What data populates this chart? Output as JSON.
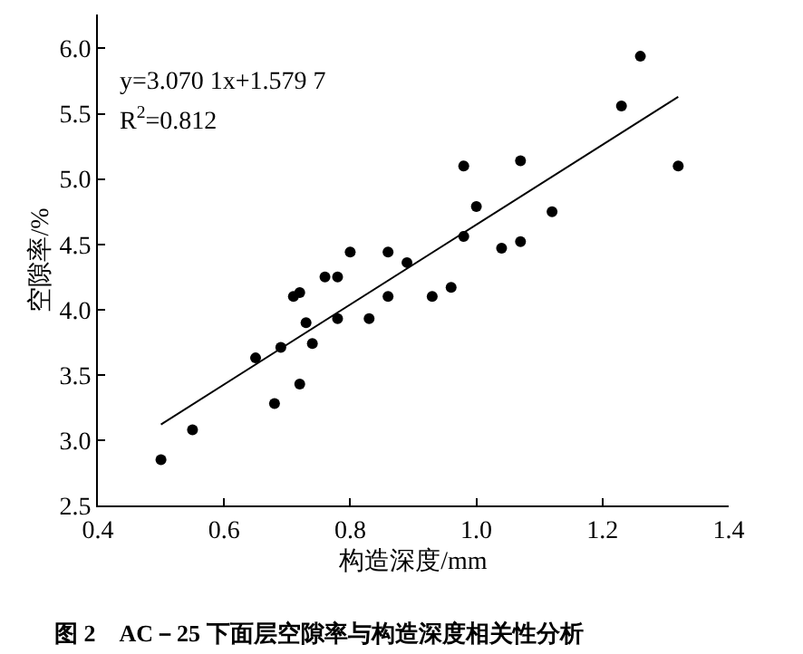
{
  "chart_data": {
    "type": "scatter",
    "title": "图 2　AC－25 下面层空隙率与构造深度相关性分析",
    "xlabel": "构造深度/mm",
    "ylabel": "空隙率/%",
    "xlim": [
      0.4,
      1.4
    ],
    "xticks": [
      {
        "value": 0.4,
        "label": "0.4"
      },
      {
        "value": 0.6,
        "label": "0.6"
      },
      {
        "value": 0.8,
        "label": "0.8"
      },
      {
        "value": 1.0,
        "label": "1.0"
      },
      {
        "value": 1.2,
        "label": "1.2"
      },
      {
        "value": 1.4,
        "label": "1.4"
      }
    ],
    "ylim": [
      2.5,
      6.26
    ],
    "yticks": [
      {
        "value": 2.5,
        "label": "2.5"
      },
      {
        "value": 3.0,
        "label": "3.0"
      },
      {
        "value": 3.5,
        "label": "3.5"
      },
      {
        "value": 4.0,
        "label": "4.0"
      },
      {
        "value": 4.5,
        "label": "4.5"
      },
      {
        "value": 5.0,
        "label": "5.0"
      },
      {
        "value": 5.5,
        "label": "5.5"
      },
      {
        "value": 6.0,
        "label": "6.0"
      }
    ],
    "legend": false,
    "marker": "circle",
    "annotations": [
      "y=3.070 1x+1.579 7",
      "R$^{2}$=0.812"
    ],
    "series": [
      {
        "color": "#000000",
        "x": [
          0.5,
          0.55,
          0.65,
          0.68,
          0.69,
          0.71,
          0.72,
          0.72,
          0.73,
          0.74,
          0.76,
          0.78,
          0.78,
          0.8,
          0.83,
          0.86,
          0.86,
          0.89,
          0.93,
          0.96,
          0.98,
          0.98,
          1.0,
          1.04,
          1.07,
          1.07,
          1.12,
          1.23,
          1.26,
          1.32
        ],
        "values": [
          2.85,
          3.08,
          3.63,
          3.28,
          3.71,
          4.1,
          4.13,
          3.43,
          3.9,
          3.74,
          4.25,
          4.25,
          3.93,
          4.44,
          3.93,
          4.44,
          4.1,
          4.36,
          4.1,
          4.17,
          4.56,
          5.1,
          4.79,
          4.47,
          5.14,
          4.52,
          4.75,
          5.56,
          5.94,
          5.1
        ]
      },
      {
        "type": "line",
        "marker": "none",
        "color": "#000000",
        "x": [
          0.5,
          1.32
        ],
        "values": [
          3.12,
          5.63
        ]
      }
    ]
  }
}
